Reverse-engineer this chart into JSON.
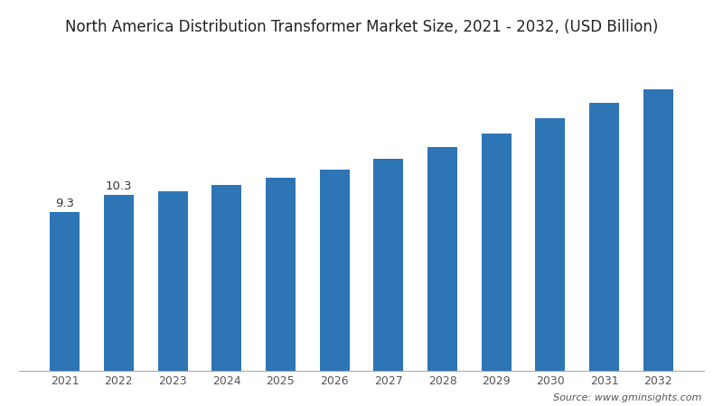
{
  "title": "North America Distribution Transformer Market Size, 2021 - 2032, (USD Billion)",
  "years": [
    2021,
    2022,
    2023,
    2024,
    2025,
    2026,
    2027,
    2028,
    2029,
    2030,
    2031,
    2032
  ],
  "values": [
    9.3,
    10.3,
    10.5,
    10.9,
    11.3,
    11.8,
    12.4,
    13.1,
    13.9,
    14.8,
    15.7,
    16.5
  ],
  "bar_color": "#2E75B6",
  "background_color": "#FFFFFF",
  "title_fontsize": 12,
  "label_fontsize": 9,
  "annotation_fontsize": 9.5,
  "source_text": "Source: www.gminsights.com",
  "source_fontsize": 8,
  "ylim": [
    0,
    19
  ],
  "annotate_years": [
    2021,
    2022
  ],
  "annotate_values": [
    9.3,
    10.3
  ],
  "bar_width": 0.55
}
